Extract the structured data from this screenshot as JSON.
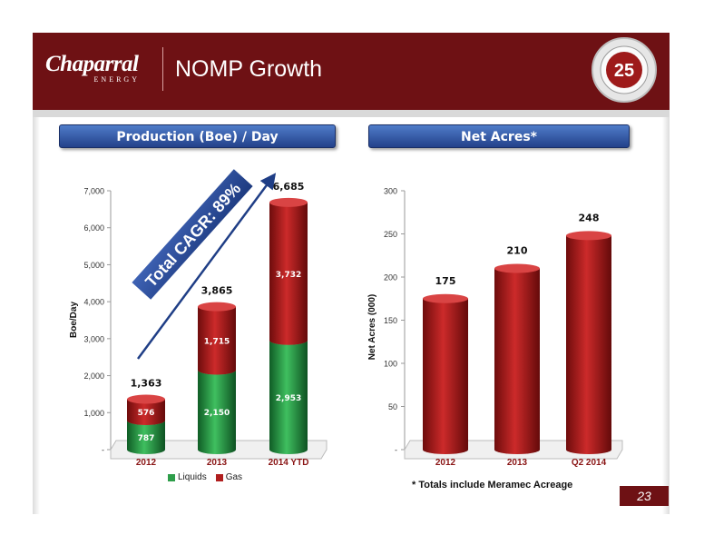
{
  "header": {
    "logo_name": "Chaparral",
    "logo_sub": "ENERGY",
    "title": "NOMP Growth",
    "seal_number": "25"
  },
  "panels": {
    "left_title": "Production (Boe) / Day",
    "right_title": "Net Acres*"
  },
  "annotation": {
    "cagr_text": "Total CAGR: 89%"
  },
  "footnote": "* Totals include Meramec Acreage",
  "page_number": "23",
  "colors": {
    "header_maroon": "#6e1114",
    "liquids_green": "#2e9e4a",
    "gas_red": "#b01e1e",
    "panel_blue": "#2c4f9e"
  },
  "chart_data": [
    {
      "type": "bar",
      "stacked": true,
      "categories": [
        "2012",
        "2013",
        "2014 YTD"
      ],
      "series": [
        {
          "name": "Liquids",
          "values": [
            787,
            2150,
            2953
          ],
          "labels": [
            "787",
            "2,150",
            "2,953"
          ]
        },
        {
          "name": "Gas",
          "values": [
            576,
            1715,
            3732
          ],
          "labels": [
            "576",
            "1,715",
            "3,732"
          ]
        }
      ],
      "totals": [
        1363,
        3865,
        6685
      ],
      "total_labels": [
        "1,363",
        "3,865",
        "6,685"
      ],
      "ylabel": "Boe/Day",
      "ylim": [
        0,
        7000
      ],
      "yticks": [
        0,
        1000,
        2000,
        3000,
        4000,
        5000,
        6000,
        7000
      ],
      "ytick_labels": [
        "-",
        "1,000",
        "2,000",
        "3,000",
        "4,000",
        "5,000",
        "6,000",
        "7,000"
      ],
      "legend": [
        "Liquids",
        "Gas"
      ],
      "legend_position": "bottom"
    },
    {
      "type": "bar",
      "categories": [
        "2012",
        "2013",
        "Q2 2014"
      ],
      "values": [
        175,
        210,
        248
      ],
      "value_labels": [
        "175",
        "210",
        "248"
      ],
      "ylabel": "Net Acres (000)",
      "ylim": [
        0,
        300
      ],
      "yticks": [
        0,
        50,
        100,
        150,
        200,
        250,
        300
      ],
      "ytick_labels": [
        "-",
        "50",
        "100",
        "150",
        "200",
        "250",
        "300"
      ]
    }
  ]
}
